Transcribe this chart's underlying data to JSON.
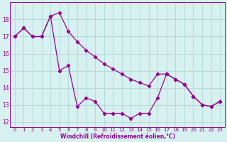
{
  "line1": {
    "x": [
      0,
      1,
      2,
      3,
      4,
      5,
      6,
      7,
      8,
      9,
      10,
      11,
      12,
      13,
      14,
      15,
      16,
      17,
      18,
      19,
      20,
      21,
      22,
      23
    ],
    "y": [
      17.0,
      17.5,
      17.0,
      17.0,
      18.2,
      15.0,
      15.3,
      12.9,
      13.4,
      13.2,
      12.5,
      12.5,
      12.5,
      12.2,
      12.5,
      12.5,
      13.4,
      14.8,
      14.5,
      14.2,
      13.5,
      13.0,
      12.9,
      13.2
    ]
  },
  "line2": {
    "x": [
      0,
      1,
      2,
      3,
      4,
      5,
      6,
      7,
      8,
      9,
      10,
      11,
      12,
      13,
      14,
      15,
      16,
      17,
      18,
      19,
      20,
      21,
      22,
      23
    ],
    "y": [
      17.0,
      17.5,
      17.0,
      17.0,
      18.2,
      18.4,
      17.3,
      16.7,
      16.2,
      15.8,
      15.4,
      15.1,
      14.8,
      14.5,
      14.3,
      14.1,
      14.8,
      14.8,
      14.5,
      14.2,
      13.5,
      13.0,
      12.9,
      13.2
    ]
  },
  "color": "#990099",
  "bg_color": "#d7f0f0",
  "grid_color": "#b0d8d8",
  "xlabel": "Windchill (Refroidissement éolien,°C)",
  "ylim": [
    11.7,
    19.0
  ],
  "xlim": [
    -0.5,
    23.5
  ],
  "yticks": [
    12,
    13,
    14,
    15,
    16,
    17,
    18
  ],
  "xticks": [
    0,
    1,
    2,
    3,
    4,
    5,
    6,
    7,
    8,
    9,
    10,
    11,
    12,
    13,
    14,
    15,
    16,
    17,
    18,
    19,
    20,
    21,
    22,
    23
  ],
  "tick_fontsize": 5.0,
  "xlabel_fontsize": 5.5,
  "linewidth": 0.9,
  "markersize": 2.2
}
